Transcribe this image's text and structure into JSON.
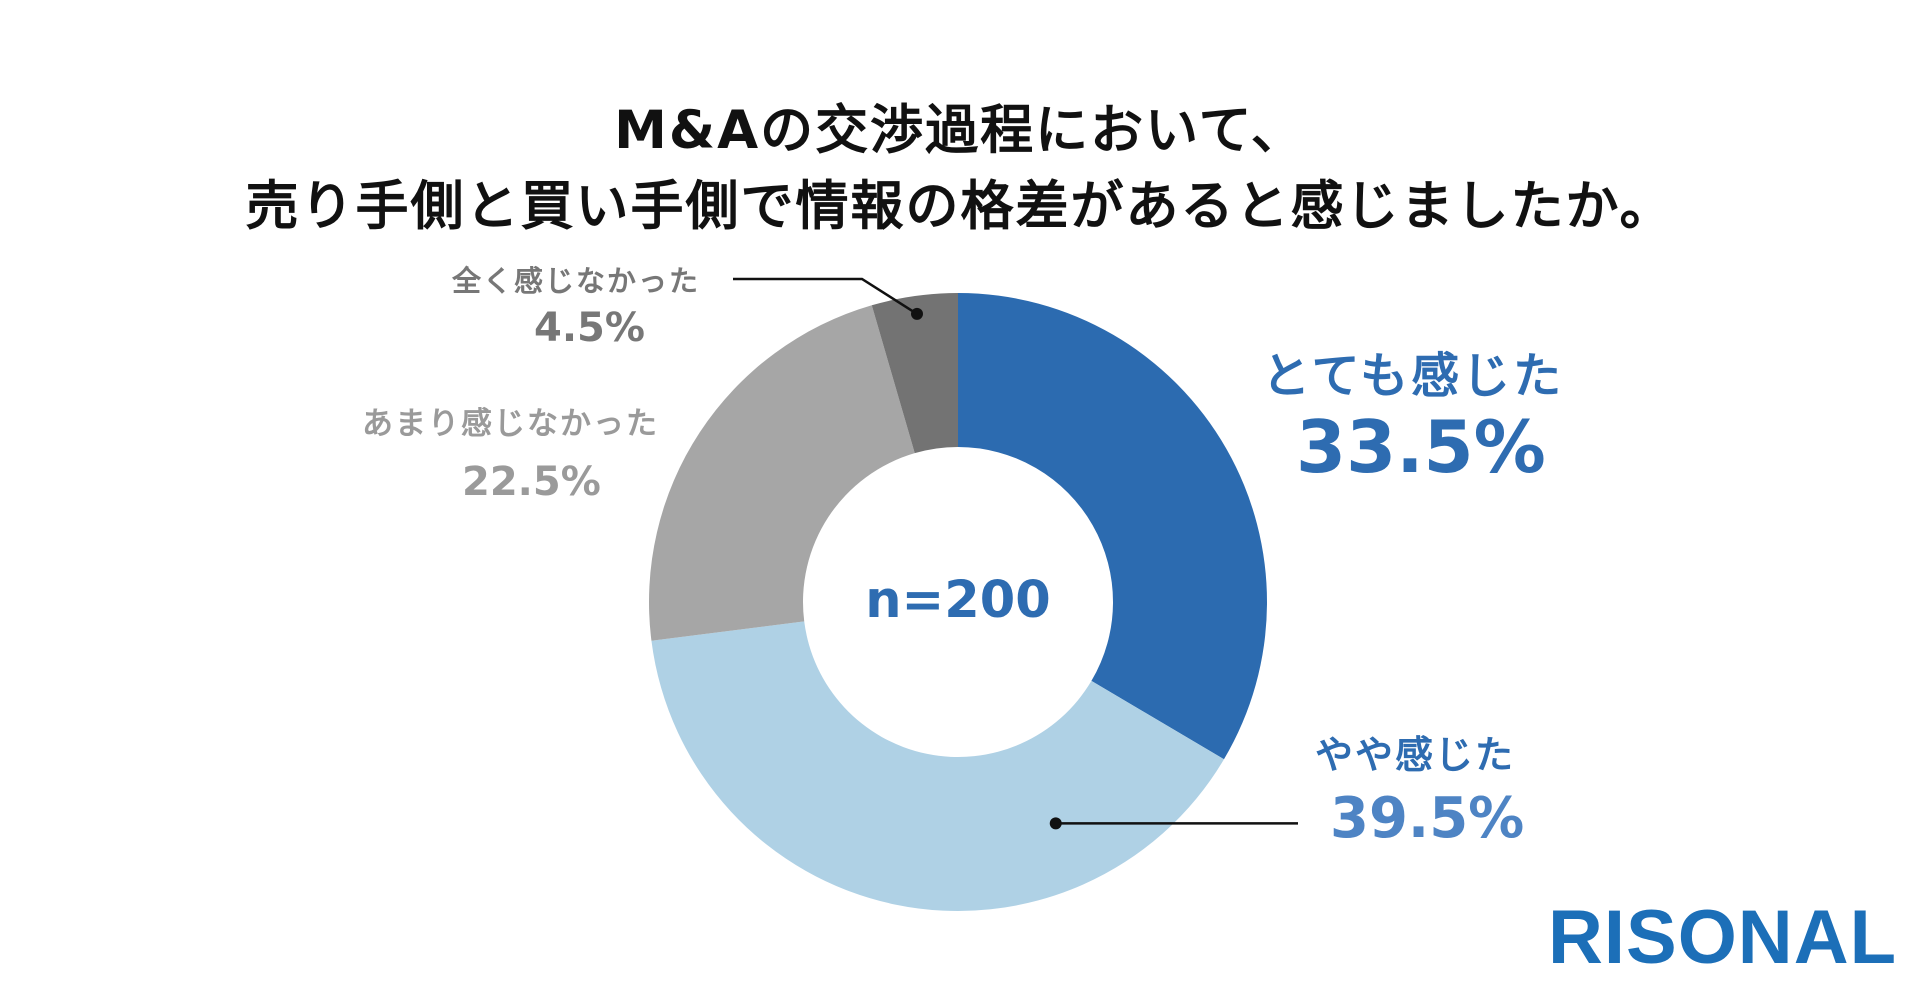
{
  "title": {
    "line1": "M&Aの交渉過程において、",
    "line2": "売り手側と買い手側で情報の格差があると感じましたか。"
  },
  "chart_data": {
    "type": "pie",
    "donut": true,
    "center_label": "n=200",
    "categories": [
      "とても感じた",
      "やや感じた",
      "あまり感じなかった",
      "全く感じなかった"
    ],
    "values": [
      33.5,
      39.5,
      22.5,
      4.5
    ],
    "value_labels": [
      "33.5%",
      "39.5%",
      "22.5%",
      "4.5%"
    ],
    "colors": [
      "#2c6bb0",
      "#afd1e5",
      "#a6a6a6",
      "#737373"
    ],
    "start_angle": "12 o'clock",
    "direction": "clockwise"
  },
  "logo": "RISONAL"
}
